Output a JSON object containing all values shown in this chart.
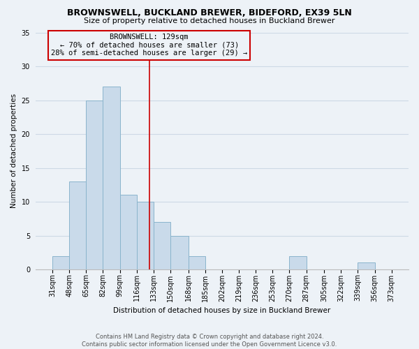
{
  "title": "BROWNSWELL, BUCKLAND BREWER, BIDEFORD, EX39 5LN",
  "subtitle": "Size of property relative to detached houses in Buckland Brewer",
  "xlabel": "Distribution of detached houses by size in Buckland Brewer",
  "ylabel": "Number of detached properties",
  "footer_line1": "Contains HM Land Registry data © Crown copyright and database right 2024.",
  "footer_line2": "Contains public sector information licensed under the Open Government Licence v3.0.",
  "bar_color": "#c9daea",
  "bar_edge_color": "#8ab4cc",
  "annotation_box_edge": "#cc0000",
  "annotation_title": "BROWNSWELL: 129sqm",
  "annotation_line1": "← 70% of detached houses are smaller (73)",
  "annotation_line2": "28% of semi-detached houses are larger (29) →",
  "vline_x": 129,
  "vline_color": "#cc0000",
  "bin_edges": [
    31,
    48,
    65,
    82,
    99,
    116,
    133,
    150,
    168,
    185,
    202,
    219,
    236,
    253,
    270,
    287,
    305,
    322,
    339,
    356,
    373
  ],
  "bin_counts": [
    2,
    13,
    25,
    27,
    11,
    10,
    7,
    5,
    2,
    0,
    0,
    0,
    0,
    0,
    2,
    0,
    0,
    0,
    1,
    0
  ],
  "ylim": [
    0,
    35
  ],
  "yticks": [
    0,
    5,
    10,
    15,
    20,
    25,
    30,
    35
  ],
  "grid_color": "#cdd9e5",
  "background_color": "#edf2f7",
  "title_fontsize": 9,
  "subtitle_fontsize": 8,
  "axis_label_fontsize": 7.5,
  "tick_fontsize": 7,
  "footer_fontsize": 6,
  "annotation_fontsize": 7.5
}
